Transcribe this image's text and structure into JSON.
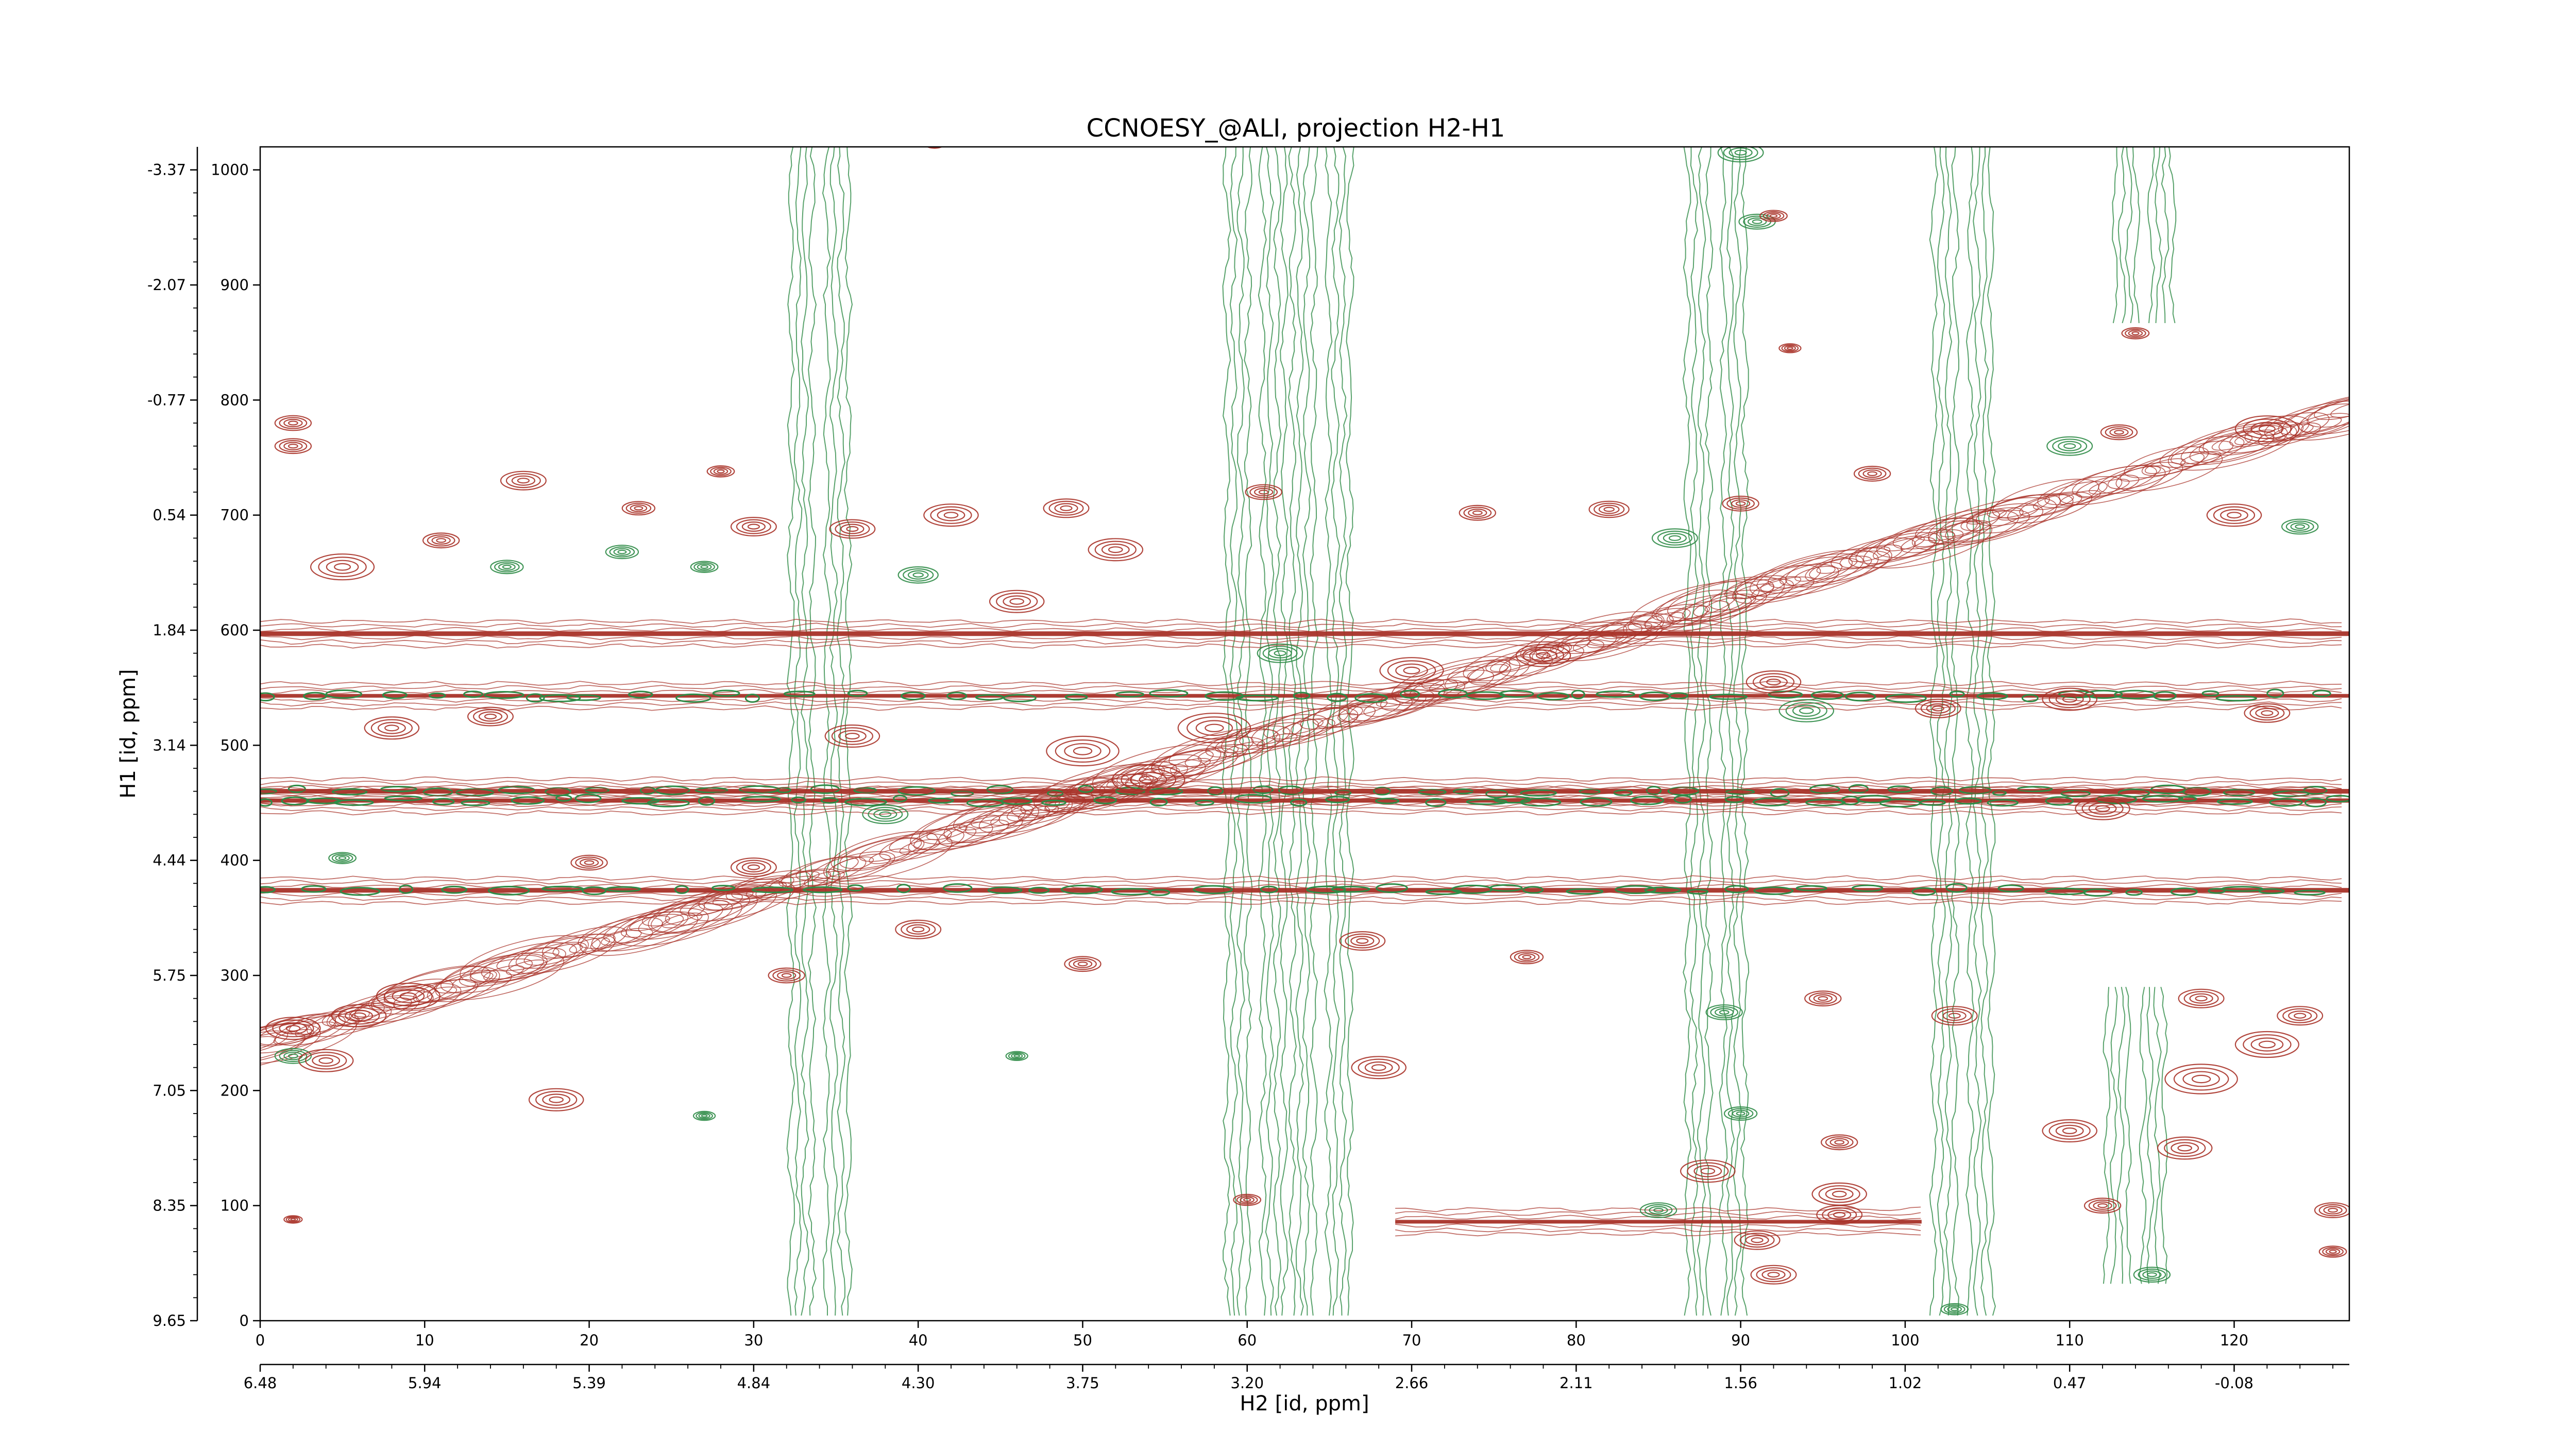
{
  "chart_data": {
    "type": "contour",
    "title": "CCNOESY_@ALI, projection H2-H1",
    "xlabel": "H2 [id, ppm]",
    "ylabel": "H1 [id, ppm]",
    "xlim": [
      0,
      127
    ],
    "ylim": [
      0,
      1020
    ],
    "x_point_ticks": [
      0,
      10,
      20,
      30,
      40,
      50,
      60,
      70,
      80,
      90,
      100,
      110,
      120
    ],
    "y_point_ticks": [
      0,
      100,
      200,
      300,
      400,
      500,
      600,
      700,
      800,
      900,
      1000
    ],
    "x_ppm_ticks": [
      "6.48",
      "5.94",
      "5.39",
      "4.84",
      "4.30",
      "3.75",
      "3.20",
      "2.66",
      "2.11",
      "1.56",
      "1.02",
      "0.47",
      "-0.08"
    ],
    "y_ppm_ticks": [
      "9.65",
      "8.35",
      "7.05",
      "5.75",
      "4.44",
      "3.14",
      "1.84",
      "0.54",
      "-0.77",
      "-2.07",
      "-3.37"
    ],
    "grid": false,
    "colors": {
      "positive": "#a83228",
      "negative": "#2e8b46"
    },
    "horizontal_bands": [
      {
        "y": 597,
        "x_range": [
          0,
          127
        ],
        "sign": "positive",
        "strength": 1.0
      },
      {
        "y": 543,
        "x_range": [
          0,
          127
        ],
        "sign": "mixed",
        "strength": 0.8
      },
      {
        "y": 460,
        "x_range": [
          0,
          127
        ],
        "sign": "mixed",
        "strength": 1.0
      },
      {
        "y": 452,
        "x_range": [
          0,
          127
        ],
        "sign": "mixed",
        "strength": 0.9
      },
      {
        "y": 374,
        "x_range": [
          0,
          127
        ],
        "sign": "mixed",
        "strength": 1.0
      },
      {
        "y": 86,
        "x_range": [
          69,
          101
        ],
        "sign": "positive",
        "strength": 0.8
      }
    ],
    "vertical_bands": [
      {
        "x": 34.0,
        "y_range": [
          0,
          1020
        ],
        "sign": "negative"
      },
      {
        "x": 60.5,
        "y_range": [
          0,
          1020
        ],
        "sign": "negative"
      },
      {
        "x": 64.5,
        "y_range": [
          0,
          1020
        ],
        "sign": "negative"
      },
      {
        "x": 88.5,
        "y_range": [
          0,
          1020
        ],
        "sign": "negative"
      },
      {
        "x": 103.5,
        "y_range": [
          0,
          1020
        ],
        "sign": "negative"
      },
      {
        "x": 114.5,
        "y_range": [
          860,
          1020
        ],
        "sign": "negative"
      },
      {
        "x": 114.0,
        "y_range": [
          30,
          290
        ],
        "sign": "negative"
      }
    ],
    "diagonal": {
      "from": [
        0,
        240
      ],
      "to": [
        127,
        790
      ],
      "sign": "positive"
    },
    "peaks": [
      {
        "x": 2,
        "y": 780,
        "sign": "positive",
        "w": 2.0
      },
      {
        "x": 2,
        "y": 760,
        "sign": "positive",
        "w": 2.0
      },
      {
        "x": 16,
        "y": 730,
        "sign": "positive",
        "w": 2.5
      },
      {
        "x": 28,
        "y": 738,
        "sign": "positive",
        "w": 1.5
      },
      {
        "x": 23,
        "y": 706,
        "sign": "positive",
        "w": 1.8
      },
      {
        "x": 11,
        "y": 678,
        "sign": "positive",
        "w": 2.0
      },
      {
        "x": 15,
        "y": 655,
        "sign": "negative",
        "w": 1.8
      },
      {
        "x": 22,
        "y": 668,
        "sign": "negative",
        "w": 1.8
      },
      {
        "x": 27,
        "y": 655,
        "sign": "negative",
        "w": 1.5
      },
      {
        "x": 5,
        "y": 655,
        "sign": "positive",
        "w": 3.5
      },
      {
        "x": 30,
        "y": 690,
        "sign": "positive",
        "w": 2.5
      },
      {
        "x": 36,
        "y": 688,
        "sign": "positive",
        "w": 2.5
      },
      {
        "x": 42,
        "y": 700,
        "sign": "positive",
        "w": 3.0
      },
      {
        "x": 49,
        "y": 706,
        "sign": "positive",
        "w": 2.5
      },
      {
        "x": 52,
        "y": 670,
        "sign": "positive",
        "w": 3.0
      },
      {
        "x": 40,
        "y": 648,
        "sign": "negative",
        "w": 2.2
      },
      {
        "x": 46,
        "y": 625,
        "sign": "positive",
        "w": 3.0
      },
      {
        "x": 61,
        "y": 720,
        "sign": "positive",
        "w": 2.0
      },
      {
        "x": 74,
        "y": 702,
        "sign": "positive",
        "w": 2.0
      },
      {
        "x": 82,
        "y": 705,
        "sign": "positive",
        "w": 2.2
      },
      {
        "x": 86,
        "y": 680,
        "sign": "negative",
        "w": 2.5
      },
      {
        "x": 90,
        "y": 710,
        "sign": "positive",
        "w": 2.0
      },
      {
        "x": 98,
        "y": 736,
        "sign": "positive",
        "w": 2.0
      },
      {
        "x": 110,
        "y": 760,
        "sign": "negative",
        "w": 2.5
      },
      {
        "x": 113,
        "y": 772,
        "sign": "positive",
        "w": 2.0
      },
      {
        "x": 122,
        "y": 775,
        "sign": "positive",
        "w": 3.5
      },
      {
        "x": 120,
        "y": 700,
        "sign": "positive",
        "w": 3.0
      },
      {
        "x": 124,
        "y": 690,
        "sign": "negative",
        "w": 2.0
      },
      {
        "x": 62,
        "y": 580,
        "sign": "negative",
        "w": 2.5
      },
      {
        "x": 70,
        "y": 565,
        "sign": "positive",
        "w": 3.5
      },
      {
        "x": 78,
        "y": 578,
        "sign": "positive",
        "w": 3.0
      },
      {
        "x": 92,
        "y": 555,
        "sign": "positive",
        "w": 3.0
      },
      {
        "x": 94,
        "y": 530,
        "sign": "negative",
        "w": 3.0
      },
      {
        "x": 102,
        "y": 532,
        "sign": "positive",
        "w": 2.5
      },
      {
        "x": 110,
        "y": 540,
        "sign": "positive",
        "w": 3.0
      },
      {
        "x": 122,
        "y": 528,
        "sign": "positive",
        "w": 2.5
      },
      {
        "x": 8,
        "y": 515,
        "sign": "positive",
        "w": 3.0
      },
      {
        "x": 14,
        "y": 525,
        "sign": "positive",
        "w": 2.5
      },
      {
        "x": 36,
        "y": 508,
        "sign": "positive",
        "w": 3.0
      },
      {
        "x": 50,
        "y": 495,
        "sign": "positive",
        "w": 4.0
      },
      {
        "x": 58,
        "y": 515,
        "sign": "positive",
        "w": 4.0
      },
      {
        "x": 38,
        "y": 440,
        "sign": "negative",
        "w": 2.5
      },
      {
        "x": 54,
        "y": 470,
        "sign": "positive",
        "w": 4.0
      },
      {
        "x": 112,
        "y": 445,
        "sign": "positive",
        "w": 3.0
      },
      {
        "x": 5,
        "y": 402,
        "sign": "negative",
        "w": 1.5
      },
      {
        "x": 20,
        "y": 398,
        "sign": "positive",
        "w": 2.0
      },
      {
        "x": 30,
        "y": 394,
        "sign": "positive",
        "w": 2.5
      },
      {
        "x": 32,
        "y": 300,
        "sign": "positive",
        "w": 2.0
      },
      {
        "x": 50,
        "y": 310,
        "sign": "positive",
        "w": 2.0
      },
      {
        "x": 40,
        "y": 340,
        "sign": "positive",
        "w": 2.5
      },
      {
        "x": 67,
        "y": 330,
        "sign": "positive",
        "w": 2.5
      },
      {
        "x": 77,
        "y": 316,
        "sign": "positive",
        "w": 1.8
      },
      {
        "x": 89,
        "y": 268,
        "sign": "negative",
        "w": 2.0
      },
      {
        "x": 95,
        "y": 280,
        "sign": "positive",
        "w": 2.0
      },
      {
        "x": 103,
        "y": 265,
        "sign": "positive",
        "w": 2.5
      },
      {
        "x": 118,
        "y": 280,
        "sign": "positive",
        "w": 2.5
      },
      {
        "x": 124,
        "y": 265,
        "sign": "positive",
        "w": 2.5
      },
      {
        "x": 9,
        "y": 282,
        "sign": "positive",
        "w": 3.5
      },
      {
        "x": 6,
        "y": 265,
        "sign": "positive",
        "w": 3.0
      },
      {
        "x": 2,
        "y": 230,
        "sign": "negative",
        "w": 2.0
      },
      {
        "x": 4,
        "y": 226,
        "sign": "positive",
        "w": 3.0
      },
      {
        "x": 2,
        "y": 254,
        "sign": "positive",
        "w": 3.0
      },
      {
        "x": 46,
        "y": 230,
        "sign": "negative",
        "w": 1.2
      },
      {
        "x": 68,
        "y": 220,
        "sign": "positive",
        "w": 3.0
      },
      {
        "x": 18,
        "y": 192,
        "sign": "positive",
        "w": 3.0
      },
      {
        "x": 27,
        "y": 178,
        "sign": "negative",
        "w": 1.2
      },
      {
        "x": 90,
        "y": 180,
        "sign": "negative",
        "w": 1.8
      },
      {
        "x": 96,
        "y": 155,
        "sign": "positive",
        "w": 2.0
      },
      {
        "x": 110,
        "y": 165,
        "sign": "positive",
        "w": 3.0
      },
      {
        "x": 118,
        "y": 210,
        "sign": "positive",
        "w": 4.0
      },
      {
        "x": 122,
        "y": 240,
        "sign": "positive",
        "w": 3.5
      },
      {
        "x": 117,
        "y": 150,
        "sign": "positive",
        "w": 3.0
      },
      {
        "x": 88,
        "y": 130,
        "sign": "positive",
        "w": 3.0
      },
      {
        "x": 96,
        "y": 110,
        "sign": "positive",
        "w": 3.0
      },
      {
        "x": 85,
        "y": 96,
        "sign": "negative",
        "w": 2.0
      },
      {
        "x": 91,
        "y": 70,
        "sign": "positive",
        "w": 2.5
      },
      {
        "x": 92,
        "y": 40,
        "sign": "positive",
        "w": 2.5
      },
      {
        "x": 96,
        "y": 92,
        "sign": "positive",
        "w": 2.5
      },
      {
        "x": 112,
        "y": 100,
        "sign": "positive",
        "w": 2.0
      },
      {
        "x": 115,
        "y": 40,
        "sign": "negative",
        "w": 2.0
      },
      {
        "x": 126,
        "y": 96,
        "sign": "positive",
        "w": 2.0
      },
      {
        "x": 126,
        "y": 60,
        "sign": "positive",
        "w": 1.5
      },
      {
        "x": 2,
        "y": 88,
        "sign": "positive",
        "w": 1.0
      },
      {
        "x": 60,
        "y": 105,
        "sign": "positive",
        "w": 1.5
      },
      {
        "x": 103,
        "y": 10,
        "sign": "negative",
        "w": 1.5
      },
      {
        "x": 90,
        "y": 1015,
        "sign": "negative",
        "w": 2.5
      },
      {
        "x": 91,
        "y": 955,
        "sign": "negative",
        "w": 2.0
      },
      {
        "x": 41,
        "y": 1022,
        "sign": "positive",
        "w": 1.0
      },
      {
        "x": 92,
        "y": 960,
        "sign": "positive",
        "w": 1.5
      },
      {
        "x": 114,
        "y": 858,
        "sign": "positive",
        "w": 1.5
      },
      {
        "x": 93,
        "y": 845,
        "sign": "positive",
        "w": 1.2
      }
    ]
  }
}
